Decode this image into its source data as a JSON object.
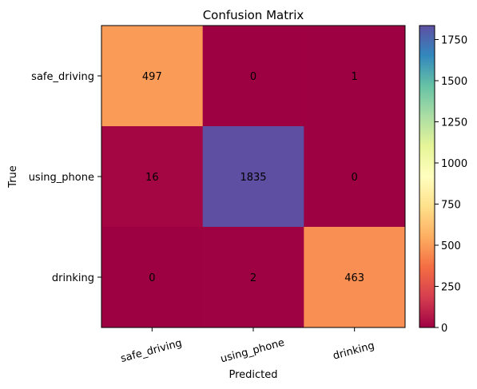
{
  "chart_data": {
    "type": "heatmap",
    "title": "Confusion Matrix",
    "xlabel": "Predicted",
    "ylabel": "True",
    "x_categories": [
      "safe_driving",
      "using_phone",
      "drinking"
    ],
    "y_categories": [
      "safe_driving",
      "using_phone",
      "drinking"
    ],
    "matrix": [
      [
        497,
        0,
        1
      ],
      [
        16,
        1835,
        0
      ],
      [
        0,
        2,
        463
      ]
    ],
    "colormap": "Spectral",
    "color_range": [
      0,
      1835
    ],
    "colorbar_ticks": [
      0,
      250,
      500,
      750,
      1000,
      1250,
      1500,
      1750
    ],
    "x_tick_rotation_deg": 15
  }
}
